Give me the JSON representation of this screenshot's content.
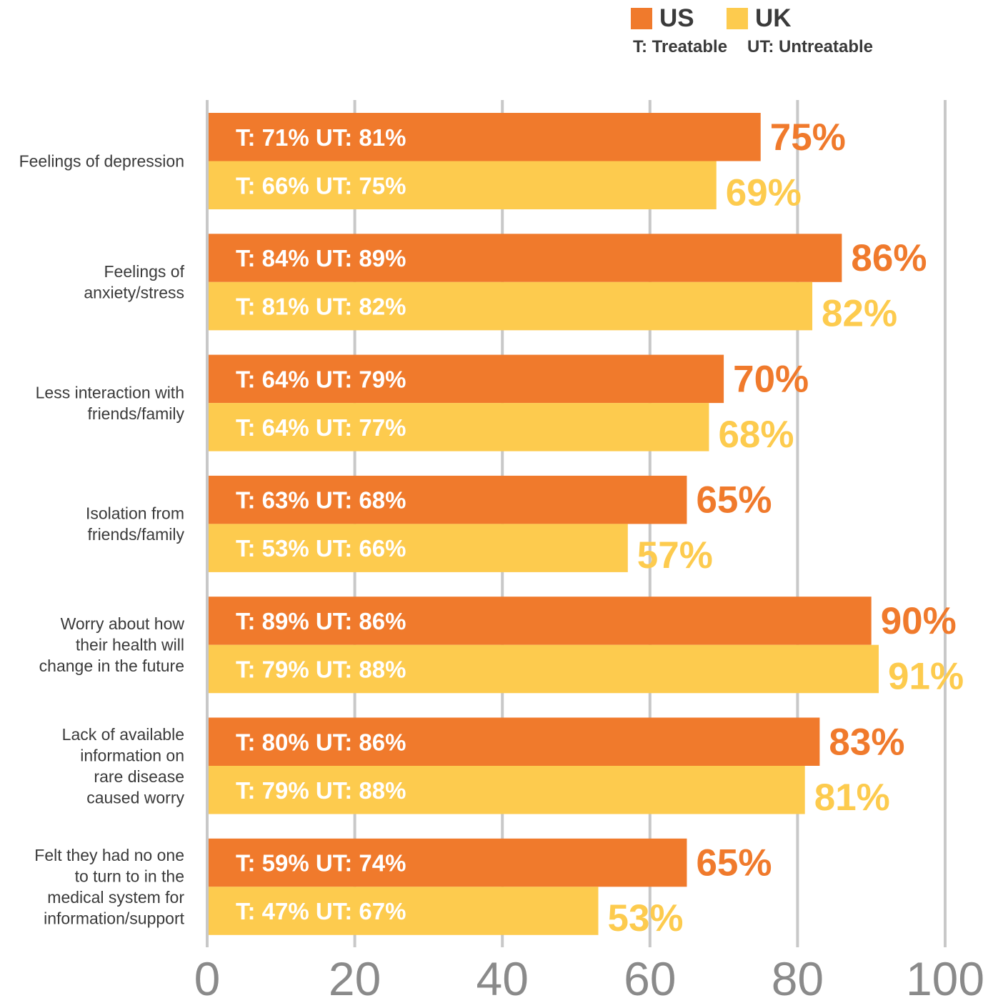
{
  "legend": {
    "us_label": "US",
    "uk_label": "UK",
    "t_note": "T: Treatable",
    "ut_note": "UT: Untreatable"
  },
  "colors": {
    "us": "#f07a2c",
    "uk": "#fdcb4e",
    "grid": "#c8c8c8",
    "axis_text": "#8a8a8a",
    "category_text": "#3a3a3a"
  },
  "chart_data": {
    "type": "bar",
    "orientation": "horizontal",
    "xlim": [
      0,
      100
    ],
    "xticks": [
      0,
      20,
      40,
      60,
      80,
      100
    ],
    "grid": true,
    "legend_position": "top-right",
    "categories": [
      [
        "Feelings of depression"
      ],
      [
        "Feelings of",
        "anxiety/stress"
      ],
      [
        "Less interaction with",
        "friends/family"
      ],
      [
        "Isolation from",
        "friends/family"
      ],
      [
        "Worry about how",
        "their health will",
        "change in the future"
      ],
      [
        "Lack of available",
        "information on",
        "rare disease",
        "caused worry"
      ],
      [
        "Felt they had no one",
        "to turn to in the",
        "medical system for",
        "information/support"
      ]
    ],
    "series": [
      {
        "name": "US",
        "values": [
          75,
          86,
          70,
          65,
          90,
          83,
          65
        ],
        "value_labels": [
          "75%",
          "86%",
          "70%",
          "65%",
          "90%",
          "83%",
          "65%"
        ],
        "inner_labels": [
          "T: 71% UT: 81%",
          "T: 84% UT: 89%",
          "T: 64% UT: 79%",
          "T: 63% UT: 68%",
          "T: 89% UT: 86%",
          "T: 80% UT: 86%",
          "T: 59% UT: 74%"
        ]
      },
      {
        "name": "UK",
        "values": [
          69,
          82,
          68,
          57,
          91,
          81,
          53
        ],
        "value_labels": [
          "69%",
          "82%",
          "68%",
          "57%",
          "91%",
          "81%",
          "53%"
        ],
        "inner_labels": [
          "T: 66% UT: 75%",
          "T: 81% UT: 82%",
          "T: 64% UT: 77%",
          "T: 53% UT: 66%",
          "T: 79% UT: 88%",
          "T: 79% UT: 88%",
          "T: 47% UT: 67%"
        ]
      }
    ]
  }
}
